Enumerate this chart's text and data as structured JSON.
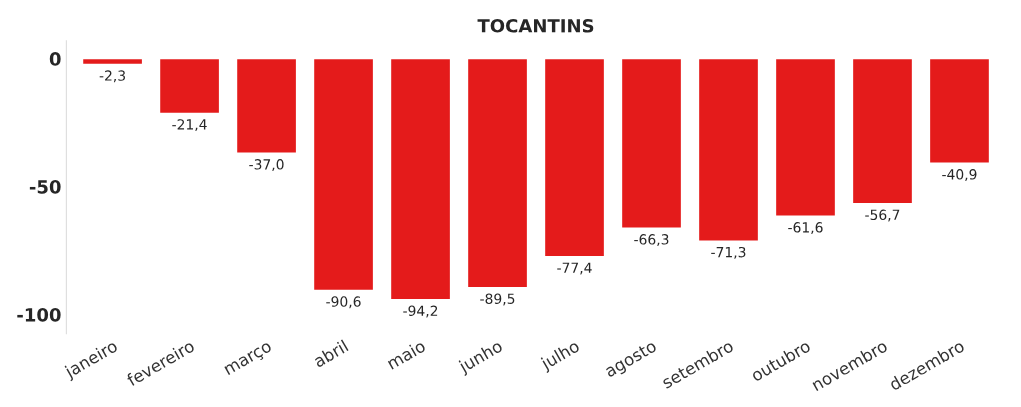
{
  "chart_data": {
    "type": "bar",
    "title": "TOCANTINS",
    "categories": [
      "janeiro",
      "fevereiro",
      "março",
      "abril",
      "maio",
      "junho",
      "julho",
      "agosto",
      "setembro",
      "outubro",
      "novembro",
      "dezembro"
    ],
    "values": [
      -2.3,
      -21.4,
      -37.0,
      -90.6,
      -94.2,
      -89.5,
      -77.4,
      -66.3,
      -71.3,
      -61.6,
      -56.7,
      -40.9
    ],
    "value_labels": [
      "-2,3",
      "-21,4",
      "-37,0",
      "-90,6",
      "-94,2",
      "-89,5",
      "-77,4",
      "-66,3",
      "-71,3",
      "-61,6",
      "-56,7",
      "-40,9"
    ],
    "color": "#e41b1b",
    "ylim": [
      -107.5,
      7
    ],
    "yticks": [
      0,
      -50,
      -100
    ],
    "grid": false
  }
}
